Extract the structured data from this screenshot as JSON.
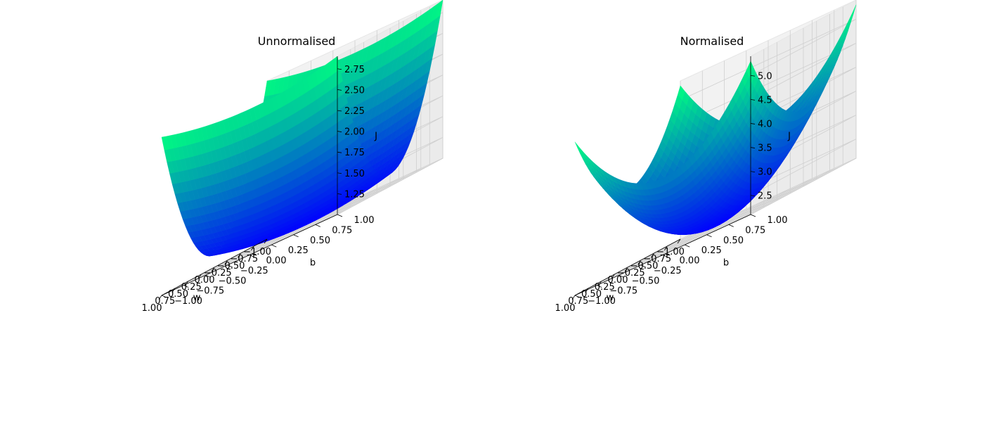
{
  "chart_data": [
    {
      "type": "surface",
      "title": "Unnormalised",
      "xlabel": "w",
      "ylabel": "b",
      "zlabel": "J",
      "xlim": [
        -1.0,
        1.0
      ],
      "ylim": [
        -1.0,
        1.0
      ],
      "zlim": [
        1.0,
        2.9
      ],
      "xticks": [
        "−1.00",
        "−0.75",
        "−0.50",
        "−0.25",
        "0.00",
        "0.25",
        "0.50",
        "0.75",
        "1.00"
      ],
      "yticks": [
        "−1.00",
        "−0.75",
        "−0.50",
        "−0.25",
        "0.00",
        "0.25",
        "0.50",
        "0.75",
        "1.00"
      ],
      "zticks": [
        "1.25",
        "1.50",
        "1.75",
        "2.00",
        "2.25",
        "2.50",
        "2.75"
      ],
      "colormap": [
        "#0000ff",
        "#00ff80"
      ],
      "grid": true,
      "surface": {
        "min": 1.0,
        "w_coef": 1.75,
        "b_coef": 0.15
      }
    },
    {
      "type": "surface",
      "title": "Normalised",
      "xlabel": "w",
      "ylabel": "b",
      "zlabel": "J",
      "xlim": [
        -1.0,
        1.0
      ],
      "ylim": [
        -1.0,
        1.0
      ],
      "zlim": [
        2.1,
        5.4
      ],
      "xticks": [
        "−1.00",
        "−0.75",
        "−0.50",
        "−0.25",
        "0.00",
        "0.25",
        "0.50",
        "0.75",
        "1.00"
      ],
      "yticks": [
        "−1.00",
        "−0.75",
        "−0.50",
        "−0.25",
        "0.00",
        "0.25",
        "0.50",
        "0.75",
        "1.00"
      ],
      "zticks": [
        "2.5",
        "3.0",
        "3.5",
        "4.0",
        "4.5",
        "5.0"
      ],
      "colormap": [
        "#0000ff",
        "#00ff80"
      ],
      "grid": true,
      "surface": {
        "min": 2.1,
        "w_coef": 1.6,
        "b_coef": 1.6
      }
    }
  ]
}
